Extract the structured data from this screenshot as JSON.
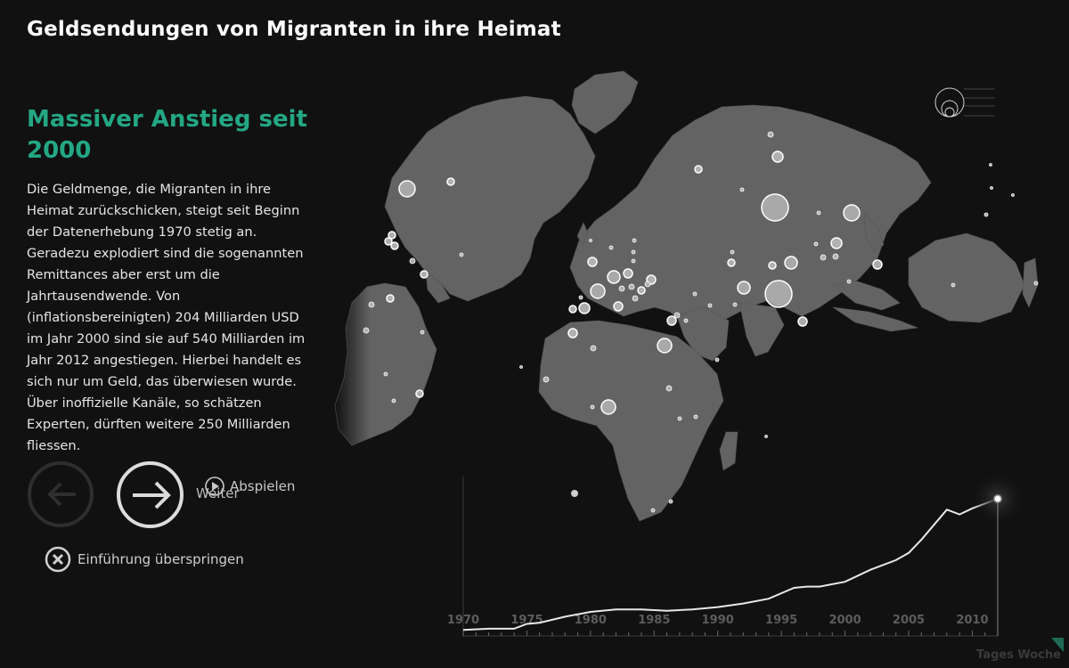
{
  "header": {
    "title": "Geldsendungen von Migranten in ihre Heimat"
  },
  "story": {
    "headline": "Massiver Anstieg seit 2000",
    "body": "Die Geldmenge, die Migranten in ihre Heimat zurückschicken, steigt seit Beginn der Datenerhebung 1970 stetig an. Geradezu explodiert sind die sogenannten Remittances aber erst um die Jahrtausendwende. Von (inflationsbereinigten) 204 Milliarden USD im Jahr 2000 sind sie auf 540 Milliarden im Jahr 2012 angestiegen. Hierbei handelt es sich nur um Geld, das überwiesen wurde. Über inoffizielle Kanäle, so schätzen Experten, dürften weitere 250 Milliarden fliessen."
  },
  "controls": {
    "next_label": "Weiter",
    "play_label": "Abspielen",
    "skip_label": "Einführung überspringen"
  },
  "timeline": {
    "years": [
      "1970",
      "1975",
      "1980",
      "1985",
      "1990",
      "1995",
      "2000",
      "2005",
      "2010"
    ],
    "current_year": 2012
  },
  "chart_data": {
    "type": "line",
    "title": "",
    "xlabel": "",
    "ylabel": "",
    "x": [
      1970,
      1972,
      1974,
      1975,
      1976,
      1978,
      1980,
      1982,
      1984,
      1986,
      1988,
      1990,
      1992,
      1994,
      1996,
      1997,
      1998,
      2000,
      2002,
      2004,
      2005,
      2006,
      2008,
      2009,
      2010,
      2012
    ],
    "values": [
      2,
      3,
      3,
      7,
      8,
      13,
      17,
      19,
      19,
      18,
      19,
      21,
      24,
      28,
      37,
      38,
      38,
      42,
      52,
      60,
      66,
      77,
      102,
      98,
      103,
      111
    ],
    "xlim": [
      1970,
      2012
    ]
  },
  "brand": {
    "name": "Tages Woche"
  },
  "colors": {
    "background": "#111111",
    "accent": "#23a784",
    "land": "#636363",
    "bubble": "#b5b5b5"
  }
}
